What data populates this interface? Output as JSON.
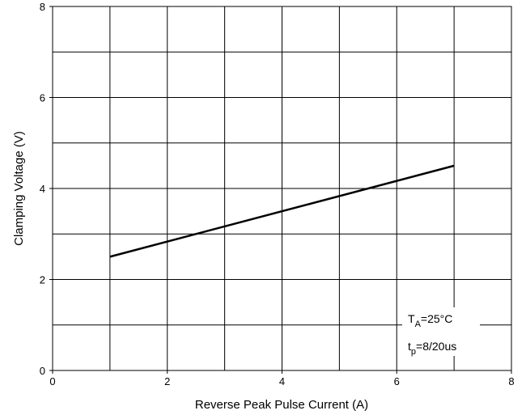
{
  "chart_data": {
    "type": "line",
    "x_label": "Reverse Peak Pulse Current (A)",
    "y_label": "Clamping Voltage (V)",
    "x": [
      1,
      7
    ],
    "series": [
      {
        "values": [
          2.5,
          4.5
        ],
        "color": "#000000"
      }
    ],
    "xlim": [
      0,
      8
    ],
    "xticks": [
      0,
      2,
      4,
      6,
      8
    ],
    "ylim": [
      0,
      8
    ],
    "yticks": [
      0,
      2,
      4,
      6,
      8
    ],
    "grid": true,
    "grid_step": 1,
    "annotations": [
      [
        "T",
        "A",
        "=25°C"
      ],
      [
        "t",
        "p",
        "=8/20us"
      ]
    ]
  }
}
